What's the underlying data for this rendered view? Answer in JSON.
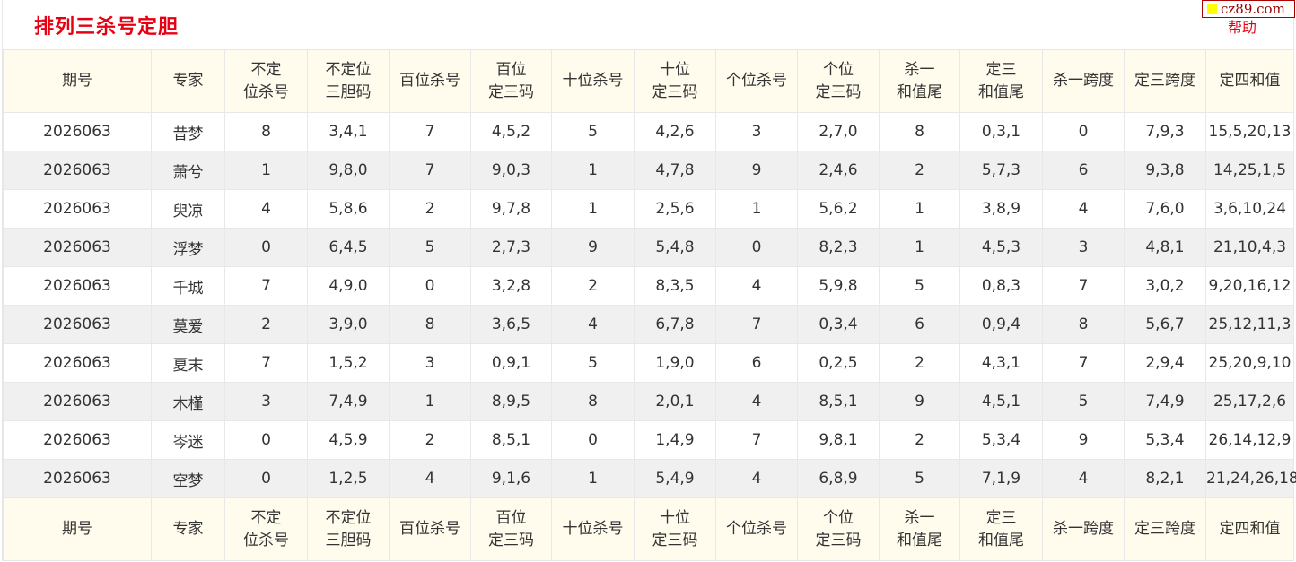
{
  "page": {
    "title": "排列三杀号定胆",
    "logo_text": "cz89.com",
    "help_label": "帮助"
  },
  "table": {
    "headers": [
      [
        "期号"
      ],
      [
        "专家"
      ],
      [
        "不定",
        "位杀号"
      ],
      [
        "不定位",
        "三胆码"
      ],
      [
        "百位杀号"
      ],
      [
        "百位",
        "定三码"
      ],
      [
        "十位杀号"
      ],
      [
        "十位",
        "定三码"
      ],
      [
        "个位杀号"
      ],
      [
        "个位",
        "定三码"
      ],
      [
        "杀一",
        "和值尾"
      ],
      [
        "定三",
        "和值尾"
      ],
      [
        "杀一跨度"
      ],
      [
        "定三跨度"
      ],
      [
        "定四和值"
      ]
    ],
    "rows": [
      [
        "2026063",
        "昔梦",
        "8",
        "3,4,1",
        "7",
        "4,5,2",
        "5",
        "4,2,6",
        "3",
        "2,7,0",
        "8",
        "0,3,1",
        "0",
        "7,9,3",
        "15,5,20,13"
      ],
      [
        "2026063",
        "萧兮",
        "1",
        "9,8,0",
        "7",
        "9,0,3",
        "1",
        "4,7,8",
        "9",
        "2,4,6",
        "2",
        "5,7,3",
        "6",
        "9,3,8",
        "14,25,1,5"
      ],
      [
        "2026063",
        "臾凉",
        "4",
        "5,8,6",
        "2",
        "9,7,8",
        "1",
        "2,5,6",
        "1",
        "5,6,2",
        "1",
        "3,8,9",
        "4",
        "7,6,0",
        "3,6,10,24"
      ],
      [
        "2026063",
        "浮梦",
        "0",
        "6,4,5",
        "5",
        "2,7,3",
        "9",
        "5,4,8",
        "0",
        "8,2,3",
        "1",
        "4,5,3",
        "3",
        "4,8,1",
        "21,10,4,3"
      ],
      [
        "2026063",
        "千城",
        "7",
        "4,9,0",
        "0",
        "3,2,8",
        "2",
        "8,3,5",
        "4",
        "5,9,8",
        "5",
        "0,8,3",
        "7",
        "3,0,2",
        "9,20,16,12"
      ],
      [
        "2026063",
        "莫爱",
        "2",
        "3,9,0",
        "8",
        "3,6,5",
        "4",
        "6,7,8",
        "7",
        "0,3,4",
        "6",
        "0,9,4",
        "8",
        "5,6,7",
        "25,12,11,3"
      ],
      [
        "2026063",
        "夏末",
        "7",
        "1,5,2",
        "3",
        "0,9,1",
        "5",
        "1,9,0",
        "6",
        "0,2,5",
        "2",
        "4,3,1",
        "7",
        "2,9,4",
        "25,20,9,10"
      ],
      [
        "2026063",
        "木槿",
        "3",
        "7,4,9",
        "1",
        "8,9,5",
        "8",
        "2,0,1",
        "4",
        "8,5,1",
        "9",
        "4,5,1",
        "5",
        "7,4,9",
        "25,17,2,6"
      ],
      [
        "2026063",
        "岑迷",
        "0",
        "4,5,9",
        "2",
        "8,5,1",
        "0",
        "1,4,9",
        "7",
        "9,8,1",
        "2",
        "5,3,4",
        "9",
        "5,3,4",
        "26,14,12,9"
      ],
      [
        "2026063",
        "空梦",
        "0",
        "1,2,5",
        "4",
        "9,1,6",
        "1",
        "5,4,9",
        "4",
        "6,8,9",
        "5",
        "7,1,9",
        "4",
        "8,2,1",
        "21,24,26,18"
      ]
    ]
  }
}
